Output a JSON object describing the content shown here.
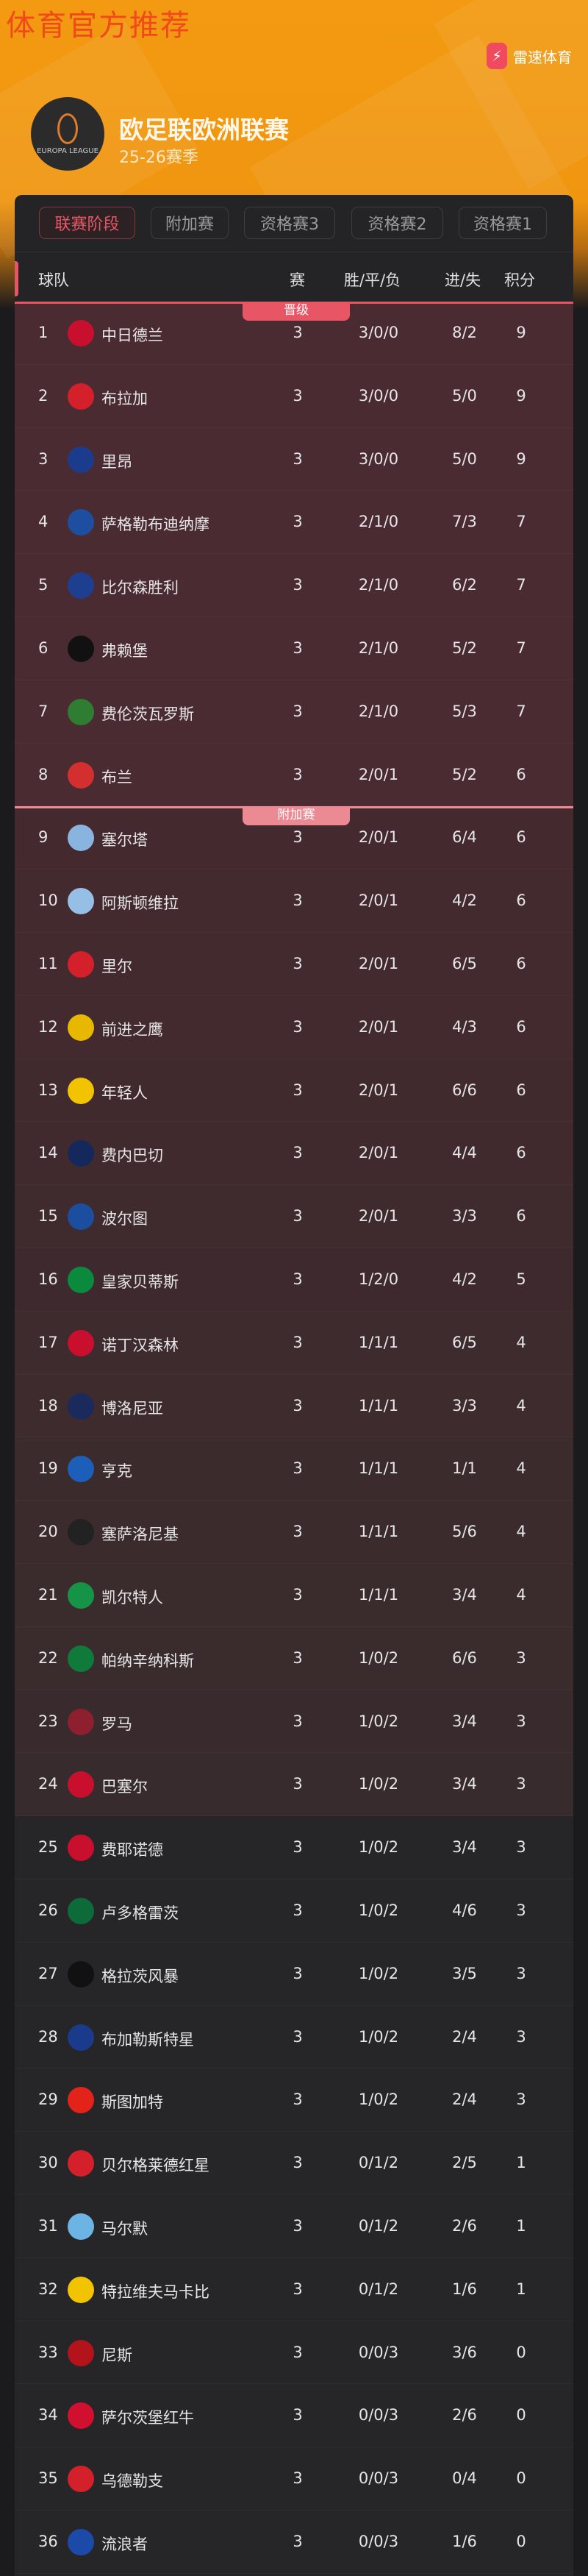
{
  "watermark": "体育官方推荐",
  "brand": {
    "name": "雷速体育",
    "icon": "lightning-icon",
    "color": "#ef4a5e"
  },
  "league": {
    "title": "欧足联欧洲联赛",
    "season": "25-26赛季",
    "logo_text": "EUROPA LEAGUE"
  },
  "tabs": [
    {
      "label": "联赛阶段",
      "active": true
    },
    {
      "label": "附加赛"
    },
    {
      "label": "资格赛3"
    },
    {
      "label": "资格赛2"
    },
    {
      "label": "资格赛1"
    }
  ],
  "table": {
    "headers": {
      "team": "球队",
      "played": "赛",
      "wdl": "胜/平/负",
      "goals": "进/失",
      "points": "积分"
    },
    "zones": [
      {
        "label": "晋级",
        "color": "#e85666"
      },
      {
        "label": "附加赛",
        "color": "#ec8a94"
      }
    ],
    "rows": [
      {
        "rank": "1",
        "team": "中日德兰",
        "p": "3",
        "wdl": "3/0/0",
        "g": "8/2",
        "pts": "9",
        "logo": "#c8102e"
      },
      {
        "rank": "2",
        "team": "布拉加",
        "p": "3",
        "wdl": "3/0/0",
        "g": "5/0",
        "pts": "9",
        "logo": "#d4202a"
      },
      {
        "rank": "3",
        "team": "里昂",
        "p": "3",
        "wdl": "3/0/0",
        "g": "5/0",
        "pts": "9",
        "logo": "#1b3c8c"
      },
      {
        "rank": "4",
        "team": "萨格勒布迪纳摩",
        "p": "3",
        "wdl": "2/1/0",
        "g": "7/3",
        "pts": "7",
        "logo": "#1d4ea0"
      },
      {
        "rank": "5",
        "team": "比尔森胜利",
        "p": "3",
        "wdl": "2/1/0",
        "g": "6/2",
        "pts": "7",
        "logo": "#1e3f8f"
      },
      {
        "rank": "6",
        "team": "弗赖堡",
        "p": "3",
        "wdl": "2/1/0",
        "g": "5/2",
        "pts": "7",
        "logo": "#111111"
      },
      {
        "rank": "7",
        "team": "费伦茨瓦罗斯",
        "p": "3",
        "wdl": "2/1/0",
        "g": "5/3",
        "pts": "7",
        "logo": "#2e7d32"
      },
      {
        "rank": "8",
        "team": "布兰",
        "p": "3",
        "wdl": "2/0/1",
        "g": "5/2",
        "pts": "6",
        "logo": "#d32f2f"
      },
      {
        "rank": "9",
        "team": "塞尔塔",
        "p": "3",
        "wdl": "2/0/1",
        "g": "6/4",
        "pts": "6",
        "logo": "#8ab4e0"
      },
      {
        "rank": "10",
        "team": "阿斯顿维拉",
        "p": "3",
        "wdl": "2/0/1",
        "g": "4/2",
        "pts": "6",
        "logo": "#95bfe5"
      },
      {
        "rank": "11",
        "team": "里尔",
        "p": "3",
        "wdl": "2/0/1",
        "g": "6/5",
        "pts": "6",
        "logo": "#d4202a"
      },
      {
        "rank": "12",
        "team": "前进之鹰",
        "p": "3",
        "wdl": "2/0/1",
        "g": "4/3",
        "pts": "6",
        "logo": "#e8b800"
      },
      {
        "rank": "13",
        "team": "年轻人",
        "p": "3",
        "wdl": "2/0/1",
        "g": "6/6",
        "pts": "6",
        "logo": "#f2c300"
      },
      {
        "rank": "14",
        "team": "费内巴切",
        "p": "3",
        "wdl": "2/0/1",
        "g": "4/4",
        "pts": "6",
        "logo": "#14285c"
      },
      {
        "rank": "15",
        "team": "波尔图",
        "p": "3",
        "wdl": "2/0/1",
        "g": "3/3",
        "pts": "6",
        "logo": "#1c4ea0"
      },
      {
        "rank": "16",
        "team": "皇家贝蒂斯",
        "p": "3",
        "wdl": "1/2/0",
        "g": "4/2",
        "pts": "5",
        "logo": "#0b8a3e"
      },
      {
        "rank": "17",
        "team": "诺丁汉森林",
        "p": "3",
        "wdl": "1/1/1",
        "g": "6/5",
        "pts": "4",
        "logo": "#c8102e"
      },
      {
        "rank": "18",
        "team": "博洛尼亚",
        "p": "3",
        "wdl": "1/1/1",
        "g": "3/3",
        "pts": "4",
        "logo": "#1a2a5c"
      },
      {
        "rank": "19",
        "team": "亨克",
        "p": "3",
        "wdl": "1/1/1",
        "g": "1/1",
        "pts": "4",
        "logo": "#1d5fb8"
      },
      {
        "rank": "20",
        "team": "塞萨洛尼基",
        "p": "3",
        "wdl": "1/1/1",
        "g": "5/6",
        "pts": "4",
        "logo": "#222222"
      },
      {
        "rank": "21",
        "team": "凯尔特人",
        "p": "3",
        "wdl": "1/1/1",
        "g": "3/4",
        "pts": "4",
        "logo": "#159447"
      },
      {
        "rank": "22",
        "team": "帕纳辛纳科斯",
        "p": "3",
        "wdl": "1/0/2",
        "g": "6/6",
        "pts": "3",
        "logo": "#0f7a3a"
      },
      {
        "rank": "23",
        "team": "罗马",
        "p": "3",
        "wdl": "1/0/2",
        "g": "3/4",
        "pts": "3",
        "logo": "#8e1f2f"
      },
      {
        "rank": "24",
        "team": "巴塞尔",
        "p": "3",
        "wdl": "1/0/2",
        "g": "3/4",
        "pts": "3",
        "logo": "#c8102e"
      },
      {
        "rank": "25",
        "team": "费耶诺德",
        "p": "3",
        "wdl": "1/0/2",
        "g": "3/4",
        "pts": "3",
        "logo": "#c8102e"
      },
      {
        "rank": "26",
        "team": "卢多格雷茨",
        "p": "3",
        "wdl": "1/0/2",
        "g": "4/6",
        "pts": "3",
        "logo": "#0d6b3a"
      },
      {
        "rank": "27",
        "team": "格拉茨风暴",
        "p": "3",
        "wdl": "1/0/2",
        "g": "3/5",
        "pts": "3",
        "logo": "#111111"
      },
      {
        "rank": "28",
        "team": "布加勒斯特星",
        "p": "3",
        "wdl": "1/0/2",
        "g": "2/4",
        "pts": "3",
        "logo": "#1a3a8c"
      },
      {
        "rank": "29",
        "team": "斯图加特",
        "p": "3",
        "wdl": "1/0/2",
        "g": "2/4",
        "pts": "3",
        "logo": "#e32219"
      },
      {
        "rank": "30",
        "team": "贝尔格莱德红星",
        "p": "3",
        "wdl": "0/1/2",
        "g": "2/5",
        "pts": "1",
        "logo": "#d4202a"
      },
      {
        "rank": "31",
        "team": "马尔默",
        "p": "3",
        "wdl": "0/1/2",
        "g": "2/6",
        "pts": "1",
        "logo": "#6cb4e4"
      },
      {
        "rank": "32",
        "team": "特拉维夫马卡比",
        "p": "3",
        "wdl": "0/1/2",
        "g": "1/6",
        "pts": "1",
        "logo": "#f2c300"
      },
      {
        "rank": "33",
        "team": "尼斯",
        "p": "3",
        "wdl": "0/0/3",
        "g": "3/6",
        "pts": "0",
        "logo": "#b3141c"
      },
      {
        "rank": "34",
        "team": "萨尔茨堡红牛",
        "p": "3",
        "wdl": "0/0/3",
        "g": "2/6",
        "pts": "0",
        "logo": "#d0102e"
      },
      {
        "rank": "35",
        "team": "乌德勒支",
        "p": "3",
        "wdl": "0/0/3",
        "g": "0/4",
        "pts": "0",
        "logo": "#d4202a"
      },
      {
        "rank": "36",
        "team": "流浪者",
        "p": "3",
        "wdl": "0/0/3",
        "g": "1/6",
        "pts": "0",
        "logo": "#1b4aa8"
      }
    ]
  }
}
